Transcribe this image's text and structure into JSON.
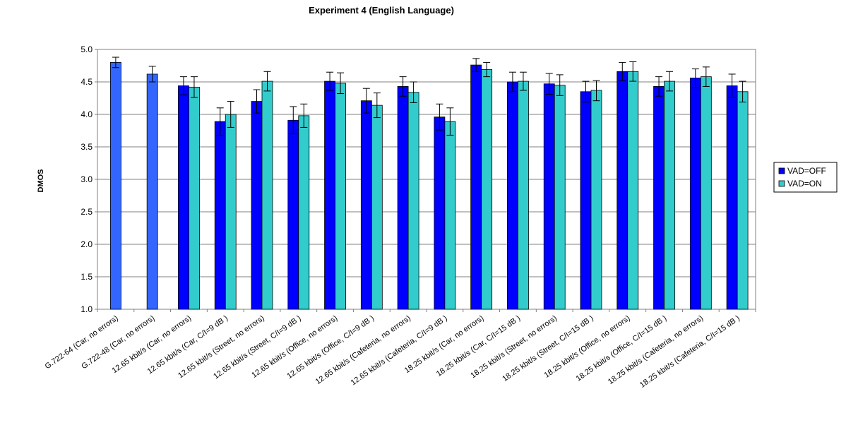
{
  "chart_data": {
    "type": "bar",
    "title": "Experiment 4 (English Language)",
    "xlabel": "",
    "ylabel": "DMOS",
    "ylim": [
      1.0,
      5.0
    ],
    "yticks": [
      "1.0",
      "1.5",
      "2.0",
      "2.5",
      "3.0",
      "3.5",
      "4.0",
      "4.5",
      "5.0"
    ],
    "grid": true,
    "legend_position": "right",
    "categories": [
      "G.722-64 (Car, no errors)",
      "G.722-48 (Car, no errors)",
      "12.65 kbit/s (Car, no errors)",
      "12.65 kbit/s (Car,  C/I=9 dB )",
      "12.65 kbit/s (Street, no errors)",
      "12.65 kbit/s (Street,  C/I=9 dB )",
      "12.65 kbit/s (Office, no errors)",
      "12.65 kbit/s (Office,  C/I=9 dB )",
      "12.65 kbit/s (Cafeteria, no errors)",
      "12.65 kbit/s (Cafeteria,  C/I=9 dB )",
      "18.25 kbit/s (Car, no errors)",
      "18.25 kbit/s (Car,  C/I=15 dB )",
      "18.25 kbit/s (Street, no errors)",
      "18.25 kbit/s (Street,  C/I=15 dB )",
      "18.25 kbit/s (Office, no errors)",
      "18.25 kbit/s (Office,  C/I=15 dB )",
      "18.25 kbit/s (Cafeteria, no errors)",
      "18.25 kbit/s (Cafeteria,  C/I=15 dB )"
    ],
    "reference": {
      "color": "#3366ff",
      "values": [
        4.8,
        4.62
      ],
      "error_low": [
        4.72,
        4.5
      ],
      "error_high": [
        4.88,
        4.74
      ]
    },
    "series": [
      {
        "name": "VAD=OFF",
        "color": "#0000ff",
        "values": [
          null,
          null,
          4.44,
          3.89,
          4.2,
          3.91,
          4.51,
          4.21,
          4.43,
          3.96,
          4.76,
          4.5,
          4.47,
          4.35,
          4.66,
          4.43,
          4.56,
          4.44
        ],
        "error_low": [
          null,
          null,
          4.3,
          3.68,
          4.02,
          3.7,
          4.37,
          4.02,
          4.28,
          3.76,
          4.66,
          4.35,
          4.31,
          4.19,
          4.52,
          4.28,
          4.41,
          4.26
        ],
        "error_high": [
          null,
          null,
          4.58,
          4.1,
          4.38,
          4.12,
          4.65,
          4.4,
          4.58,
          4.16,
          4.86,
          4.65,
          4.63,
          4.51,
          4.8,
          4.58,
          4.7,
          4.62
        ]
      },
      {
        "name": "VAD=ON",
        "color": "#33cccc",
        "values": [
          null,
          null,
          4.42,
          4.0,
          4.51,
          3.98,
          4.48,
          4.14,
          4.34,
          3.89,
          4.69,
          4.51,
          4.45,
          4.37,
          4.66,
          4.51,
          4.58,
          4.35
        ],
        "error_low": [
          null,
          null,
          4.26,
          3.8,
          4.36,
          3.8,
          4.32,
          3.95,
          4.18,
          3.68,
          4.58,
          4.37,
          4.29,
          4.21,
          4.51,
          4.36,
          4.43,
          4.19
        ],
        "error_high": [
          null,
          null,
          4.58,
          4.2,
          4.66,
          4.16,
          4.64,
          4.33,
          4.5,
          4.1,
          4.8,
          4.65,
          4.61,
          4.52,
          4.81,
          4.66,
          4.73,
          4.51
        ]
      }
    ]
  }
}
